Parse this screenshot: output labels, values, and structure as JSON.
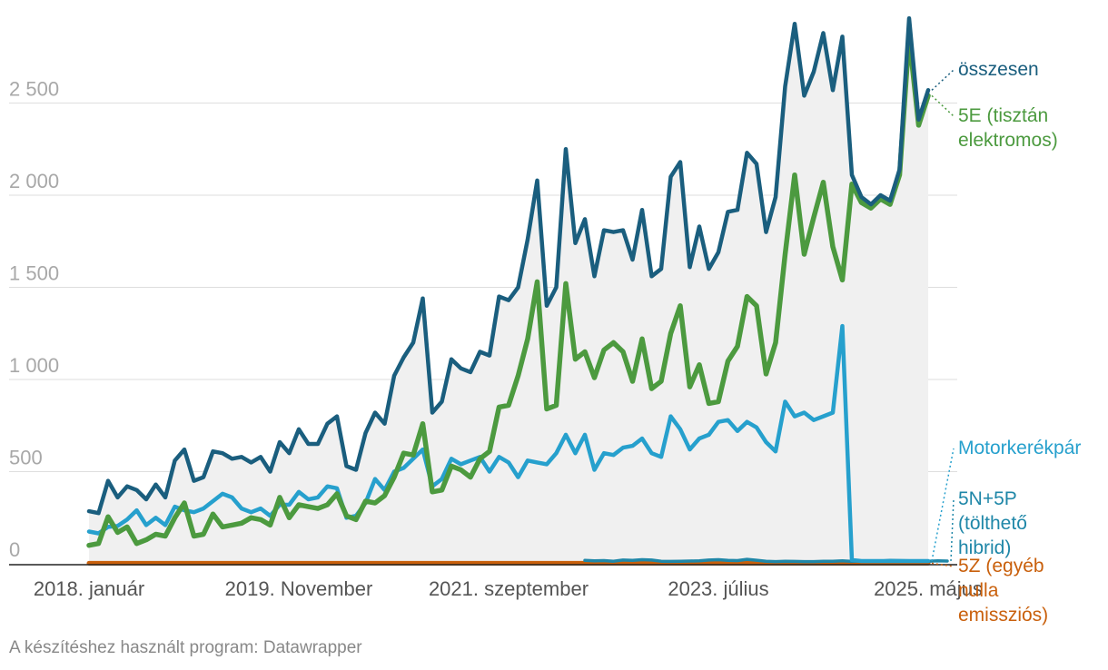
{
  "chart_data": {
    "type": "line",
    "title": "",
    "xlabel": "",
    "ylabel": "",
    "ylim": [
      0,
      3000
    ],
    "yticks": [
      0,
      500,
      1000,
      1500,
      2000,
      2500
    ],
    "ytick_labels": [
      "0",
      "500",
      "1 000",
      "1 500",
      "2 000",
      "2 500"
    ],
    "xticks": [
      {
        "index": 0,
        "label": "2018. január"
      },
      {
        "index": 22,
        "label": "2019. November"
      },
      {
        "index": 44,
        "label": "2021. szeptember"
      },
      {
        "index": 66,
        "label": "2023. július"
      },
      {
        "index": 88,
        "label": "2025. május"
      }
    ],
    "grid": true,
    "series": [
      {
        "name": "összesen",
        "color": "#1a5e7e",
        "label_lines": [
          "összesen"
        ],
        "values": [
          285,
          275,
          450,
          360,
          420,
          400,
          350,
          430,
          360,
          560,
          620,
          450,
          470,
          610,
          600,
          570,
          580,
          550,
          580,
          500,
          660,
          600,
          730,
          650,
          650,
          760,
          800,
          530,
          510,
          710,
          820,
          760,
          1020,
          1120,
          1200,
          1440,
          820,
          880,
          1110,
          1060,
          1040,
          1150,
          1130,
          1450,
          1430,
          1500,
          1760,
          2080,
          1400,
          1500,
          2250,
          1740,
          1870,
          1560,
          1810,
          1800,
          1810,
          1650,
          1920,
          1560,
          1600,
          2100,
          2180,
          1610,
          1830,
          1600,
          1690,
          1910,
          1920,
          2230,
          2170,
          1800,
          1990,
          2590,
          2930,
          2540,
          2670,
          2880,
          2570,
          2860,
          2110,
          1990,
          1950,
          2000,
          1970,
          2140,
          2960,
          2410,
          2570
        ]
      },
      {
        "name": "5E (tisztán elektromos)",
        "color": "#4c9a3f",
        "label_lines": [
          "5E (tisztán",
          "elektromos)"
        ],
        "values": [
          100,
          110,
          255,
          170,
          200,
          110,
          130,
          160,
          150,
          250,
          330,
          150,
          160,
          270,
          200,
          210,
          220,
          250,
          240,
          210,
          360,
          250,
          320,
          310,
          300,
          320,
          380,
          260,
          240,
          340,
          330,
          370,
          470,
          600,
          590,
          760,
          390,
          400,
          530,
          510,
          470,
          570,
          610,
          850,
          860,
          1020,
          1220,
          1530,
          840,
          860,
          1520,
          1110,
          1150,
          1010,
          1160,
          1200,
          1150,
          990,
          1220,
          950,
          990,
          1250,
          1400,
          960,
          1080,
          870,
          880,
          1100,
          1180,
          1450,
          1400,
          1030,
          1200,
          1680,
          2110,
          1680,
          1880,
          2070,
          1720,
          1540,
          2060,
          1960,
          1930,
          1980,
          1950,
          2110,
          2860,
          2380,
          2540
        ]
      },
      {
        "name": "Motorkerékpár",
        "color": "#26a0cd",
        "label_lines": [
          "Motorkerékpár"
        ],
        "values": [
          175,
          165,
          200,
          205,
          240,
          290,
          210,
          250,
          210,
          310,
          290,
          280,
          300,
          340,
          380,
          360,
          300,
          280,
          300,
          260,
          320,
          320,
          390,
          350,
          360,
          420,
          410,
          250,
          260,
          330,
          460,
          400,
          500,
          520,
          570,
          620,
          420,
          460,
          570,
          540,
          560,
          580,
          500,
          580,
          550,
          470,
          560,
          550,
          540,
          600,
          700,
          600,
          700,
          510,
          600,
          590,
          630,
          640,
          680,
          600,
          580,
          800,
          730,
          620,
          680,
          700,
          770,
          780,
          720,
          770,
          740,
          660,
          610,
          880,
          800,
          820,
          780,
          800,
          820,
          1290,
          20,
          15,
          15,
          15,
          15,
          15,
          15,
          15,
          15
        ]
      },
      {
        "name": "5N+5P (tölthető hibrid)",
        "color": "#1f87a8",
        "label_lines": [
          "5N+5P",
          "(tölthető",
          "hibrid)"
        ],
        "start_index": 52,
        "values": [
          18,
          16,
          17,
          14,
          20,
          18,
          22,
          20,
          14,
          13,
          14,
          15,
          16,
          20,
          22,
          18,
          17,
          24,
          19,
          14,
          12,
          14,
          13,
          12,
          12,
          14,
          14,
          16,
          13,
          16,
          14,
          15,
          18,
          17,
          16,
          15,
          14,
          16,
          15
        ]
      },
      {
        "name": "5Z (egyéb nulla emissziós)",
        "color": "#c9600c",
        "label_lines": [
          "5Z (egyéb",
          "nulla",
          "emissziós)"
        ],
        "values": [
          3,
          3,
          3,
          3,
          3,
          3,
          3,
          3,
          3,
          3,
          3,
          3,
          3,
          3,
          3,
          3,
          3,
          3,
          3,
          3,
          3,
          3,
          3,
          3,
          3,
          3,
          3,
          3,
          3,
          3,
          3,
          3,
          3,
          3,
          3,
          3,
          3,
          3,
          3,
          3,
          3,
          3,
          3,
          3,
          3,
          3,
          3,
          3,
          3,
          3,
          3,
          3,
          3,
          3,
          3,
          3,
          3,
          3,
          3,
          3,
          3,
          3,
          3,
          3,
          3,
          3,
          3,
          3,
          3,
          3,
          3,
          3,
          3,
          3,
          3,
          3,
          3,
          3,
          3,
          3,
          3,
          3,
          3,
          3,
          3,
          3,
          3,
          3,
          3
        ]
      }
    ]
  },
  "footer": {
    "credit": "A készítéshez használt program: Datawrapper"
  }
}
